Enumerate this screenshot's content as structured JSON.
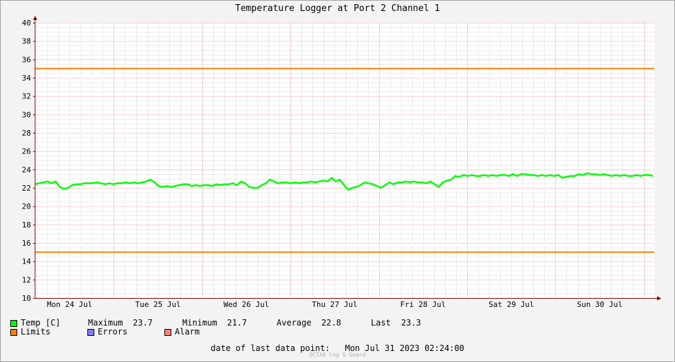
{
  "chart_data": {
    "type": "line",
    "title": "Temperature Logger at Port 2 Channel 1",
    "ylim": [
      10,
      40
    ],
    "yticks": [
      10,
      12,
      14,
      16,
      18,
      20,
      22,
      24,
      26,
      28,
      30,
      32,
      34,
      36,
      38,
      40
    ],
    "xlim_days": [
      "Mon 24 Jul",
      "Tue 25 Jul",
      "Wed 26 Jul",
      "Thu 27 Jul",
      "Fri 28 Jul",
      "Sat 29 Jul",
      "Sun 30 Jul"
    ],
    "grid": true,
    "series": [
      {
        "name": "Temp [C]",
        "color": "#00ff00",
        "values": [
          22.4,
          22.5,
          22.6,
          22.7,
          22.5,
          22.7,
          22.1,
          21.9,
          22.0,
          22.3,
          22.4,
          22.4,
          22.5,
          22.5,
          22.5,
          22.6,
          22.5,
          22.4,
          22.5,
          22.4,
          22.5,
          22.5,
          22.6,
          22.5,
          22.6,
          22.5,
          22.6,
          22.7,
          22.9,
          22.6,
          22.2,
          22.1,
          22.2,
          22.1,
          22.2,
          22.3,
          22.4,
          22.4,
          22.2,
          22.3,
          22.2,
          22.3,
          22.3,
          22.2,
          22.4,
          22.3,
          22.4,
          22.4,
          22.5,
          22.3,
          22.7,
          22.5,
          22.1,
          22.0,
          22.0,
          22.3,
          22.5,
          22.9,
          22.7,
          22.5,
          22.6,
          22.6,
          22.5,
          22.6,
          22.5,
          22.6,
          22.6,
          22.7,
          22.6,
          22.7,
          22.8,
          22.7,
          23.1,
          22.7,
          22.9,
          22.3,
          21.8,
          22.0,
          22.1,
          22.3,
          22.6,
          22.5,
          22.4,
          22.2,
          22.0,
          22.3,
          22.6,
          22.4,
          22.6,
          22.6,
          22.7,
          22.6,
          22.7,
          22.6,
          22.6,
          22.5,
          22.7,
          22.4,
          22.1,
          22.6,
          22.8,
          22.9,
          23.3,
          23.2,
          23.4,
          23.3,
          23.4,
          23.3,
          23.3,
          23.4,
          23.3,
          23.4,
          23.3,
          23.4,
          23.4,
          23.3,
          23.5,
          23.3,
          23.5,
          23.5,
          23.4,
          23.4,
          23.3,
          23.4,
          23.3,
          23.4,
          23.3,
          23.4,
          23.1,
          23.2,
          23.3,
          23.3,
          23.5,
          23.4,
          23.6,
          23.5,
          23.5,
          23.4,
          23.5,
          23.4,
          23.3,
          23.4,
          23.3,
          23.4,
          23.3,
          23.3,
          23.4,
          23.3,
          23.4,
          23.4,
          23.3
        ]
      },
      {
        "name": "Limits",
        "color": "#ff7f00",
        "upper": 35,
        "lower": 15
      }
    ],
    "colors": {
      "temp": "#00ff00",
      "limits": "#ff7f00",
      "errors": "#7f7fff",
      "alarm": "#ff7f7f",
      "grid_major": "#e8a0a0",
      "grid_minor": "#d8d8d8",
      "axis": "#800000"
    }
  },
  "legend": {
    "temp": "Temp [C]",
    "limits": "Limits",
    "errors": "Errors",
    "alarm": "Alarm"
  },
  "stats": {
    "maximum_label": "Maximum",
    "maximum": "23.7",
    "minimum_label": "Minimum",
    "minimum": "21.7",
    "average_label": "Average",
    "average": "22.8",
    "last_label": "Last",
    "last": "23.3"
  },
  "footer": {
    "date_label": "date of last data point:",
    "date_value": "Mon Jul 31 2023 02:24:00",
    "watermark": "OCTAA Log & Guard"
  }
}
